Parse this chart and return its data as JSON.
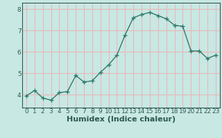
{
  "x": [
    0,
    1,
    2,
    3,
    4,
    5,
    6,
    7,
    8,
    9,
    10,
    11,
    12,
    13,
    14,
    15,
    16,
    17,
    18,
    19,
    20,
    21,
    22,
    23
  ],
  "y": [
    3.95,
    4.2,
    3.85,
    3.75,
    4.1,
    4.15,
    4.9,
    4.6,
    4.65,
    5.05,
    5.4,
    5.85,
    6.8,
    7.6,
    7.75,
    7.85,
    7.7,
    7.55,
    7.25,
    7.2,
    6.05,
    6.05,
    5.7,
    5.85
  ],
  "line_color": "#2d7a6a",
  "marker": "+",
  "marker_size": 4,
  "bg_color": "#c8e8e4",
  "grid_color": "#e8b8b8",
  "tick_color": "#2d5a50",
  "xlabel": "Humidex (Indice chaleur)",
  "xlim": [
    -0.5,
    23.5
  ],
  "ylim": [
    3.4,
    8.3
  ],
  "yticks": [
    4,
    5,
    6,
    7,
    8
  ],
  "xticks": [
    0,
    1,
    2,
    3,
    4,
    5,
    6,
    7,
    8,
    9,
    10,
    11,
    12,
    13,
    14,
    15,
    16,
    17,
    18,
    19,
    20,
    21,
    22,
    23
  ],
  "linewidth": 1.0,
  "font_size": 6.5,
  "label_fontsize": 8.0,
  "marker_linewidth": 1.0
}
